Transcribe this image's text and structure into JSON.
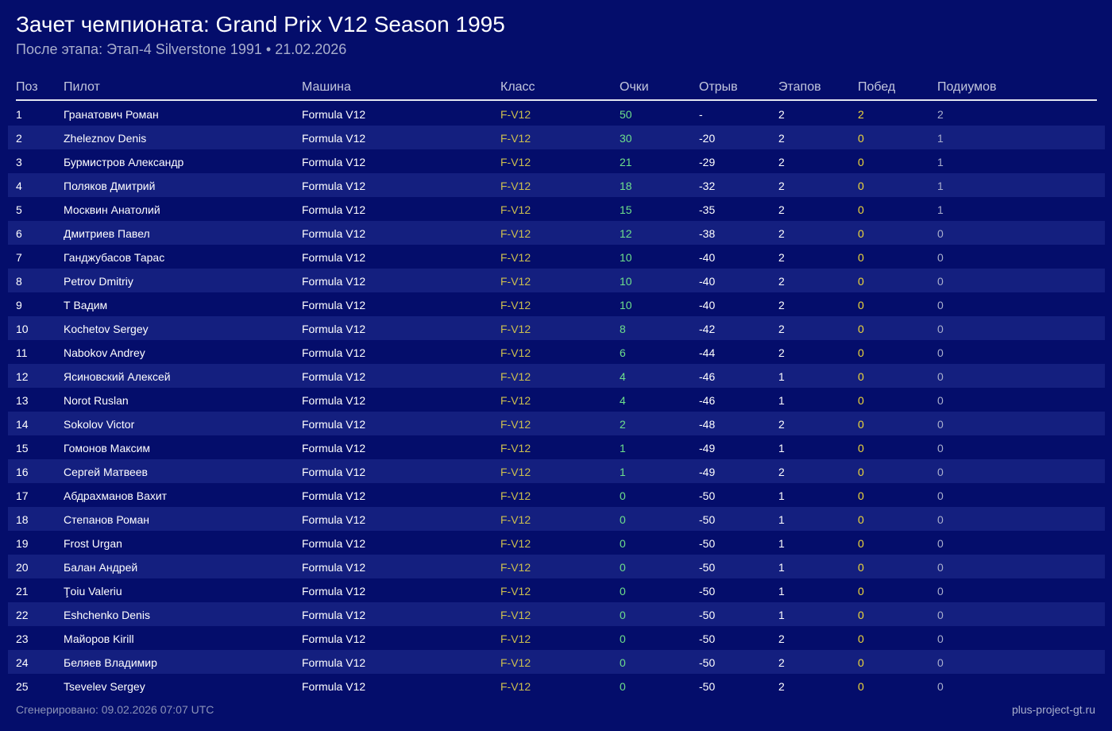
{
  "header": {
    "title": "Зачет чемпионата: Grand Prix V12 Season 1995",
    "subtitle": "После этапа: Этап-4 Silverstone 1991 • 21.02.2026"
  },
  "columns": {
    "pos": "Поз",
    "driver": "Пилот",
    "car": "Машина",
    "class": "Класс",
    "points": "Очки",
    "gap": "Отрыв",
    "stages": "Этапов",
    "wins": "Побед",
    "podiums": "Подиумов"
  },
  "colors": {
    "background": "#040d6b",
    "row_alt": "#141f7f",
    "class_text": "#cdbf4f",
    "points_text": "#6ee08c",
    "wins_text": "#f0d73a",
    "muted_text": "#a9afcd"
  },
  "rows": [
    {
      "pos": "1",
      "driver": "Гранатович Роман",
      "car": "Formula V12",
      "class": "F-V12",
      "points": "50",
      "gap": "-",
      "stages": "2",
      "wins": "2",
      "podiums": "2"
    },
    {
      "pos": "2",
      "driver": "Zheleznov Denis",
      "car": "Formula V12",
      "class": "F-V12",
      "points": "30",
      "gap": "-20",
      "stages": "2",
      "wins": "0",
      "podiums": "1"
    },
    {
      "pos": "3",
      "driver": "Бурмистров Александр",
      "car": "Formula V12",
      "class": "F-V12",
      "points": "21",
      "gap": "-29",
      "stages": "2",
      "wins": "0",
      "podiums": "1"
    },
    {
      "pos": "4",
      "driver": "Поляков Дмитрий",
      "car": "Formula V12",
      "class": "F-V12",
      "points": "18",
      "gap": "-32",
      "stages": "2",
      "wins": "0",
      "podiums": "1"
    },
    {
      "pos": "5",
      "driver": "Москвин Анатолий",
      "car": "Formula V12",
      "class": "F-V12",
      "points": "15",
      "gap": "-35",
      "stages": "2",
      "wins": "0",
      "podiums": "1"
    },
    {
      "pos": "6",
      "driver": "Дмитриев Павел",
      "car": "Formula V12",
      "class": "F-V12",
      "points": "12",
      "gap": "-38",
      "stages": "2",
      "wins": "0",
      "podiums": "0"
    },
    {
      "pos": "7",
      "driver": "Ганджубасов Тарас",
      "car": "Formula V12",
      "class": "F-V12",
      "points": "10",
      "gap": "-40",
      "stages": "2",
      "wins": "0",
      "podiums": "0"
    },
    {
      "pos": "8",
      "driver": "Petrov Dmitriy",
      "car": "Formula V12",
      "class": "F-V12",
      "points": "10",
      "gap": "-40",
      "stages": "2",
      "wins": "0",
      "podiums": "0"
    },
    {
      "pos": "9",
      "driver": "Т Вадим",
      "car": "Formula V12",
      "class": "F-V12",
      "points": "10",
      "gap": "-40",
      "stages": "2",
      "wins": "0",
      "podiums": "0"
    },
    {
      "pos": "10",
      "driver": "Kochetov Sergey",
      "car": "Formula V12",
      "class": "F-V12",
      "points": "8",
      "gap": "-42",
      "stages": "2",
      "wins": "0",
      "podiums": "0"
    },
    {
      "pos": "11",
      "driver": "Nabokov Andrey",
      "car": "Formula V12",
      "class": "F-V12",
      "points": "6",
      "gap": "-44",
      "stages": "2",
      "wins": "0",
      "podiums": "0"
    },
    {
      "pos": "12",
      "driver": "Ясиновский Алексей",
      "car": "Formula V12",
      "class": "F-V12",
      "points": "4",
      "gap": "-46",
      "stages": "1",
      "wins": "0",
      "podiums": "0"
    },
    {
      "pos": "13",
      "driver": "Norot Ruslan",
      "car": "Formula V12",
      "class": "F-V12",
      "points": "4",
      "gap": "-46",
      "stages": "1",
      "wins": "0",
      "podiums": "0"
    },
    {
      "pos": "14",
      "driver": "Sokolov Victor",
      "car": "Formula V12",
      "class": "F-V12",
      "points": "2",
      "gap": "-48",
      "stages": "2",
      "wins": "0",
      "podiums": "0"
    },
    {
      "pos": "15",
      "driver": "Гомонов Максим",
      "car": "Formula V12",
      "class": "F-V12",
      "points": "1",
      "gap": "-49",
      "stages": "1",
      "wins": "0",
      "podiums": "0"
    },
    {
      "pos": "16",
      "driver": "Сергей Матвеев",
      "car": "Formula V12",
      "class": "F-V12",
      "points": "1",
      "gap": "-49",
      "stages": "2",
      "wins": "0",
      "podiums": "0"
    },
    {
      "pos": "17",
      "driver": "Абдрахманов Вахит",
      "car": "Formula V12",
      "class": "F-V12",
      "points": "0",
      "gap": "-50",
      "stages": "1",
      "wins": "0",
      "podiums": "0"
    },
    {
      "pos": "18",
      "driver": "Степанов Роман",
      "car": "Formula V12",
      "class": "F-V12",
      "points": "0",
      "gap": "-50",
      "stages": "1",
      "wins": "0",
      "podiums": "0"
    },
    {
      "pos": "19",
      "driver": "Frost Urgan",
      "car": "Formula V12",
      "class": "F-V12",
      "points": "0",
      "gap": "-50",
      "stages": "1",
      "wins": "0",
      "podiums": "0"
    },
    {
      "pos": "20",
      "driver": "Балан Андрей",
      "car": "Formula V12",
      "class": "F-V12",
      "points": "0",
      "gap": "-50",
      "stages": "1",
      "wins": "0",
      "podiums": "0"
    },
    {
      "pos": "21",
      "driver": "Ţoiu Valeriu",
      "car": "Formula V12",
      "class": "F-V12",
      "points": "0",
      "gap": "-50",
      "stages": "1",
      "wins": "0",
      "podiums": "0"
    },
    {
      "pos": "22",
      "driver": "Eshchenko Denis",
      "car": "Formula V12",
      "class": "F-V12",
      "points": "0",
      "gap": "-50",
      "stages": "1",
      "wins": "0",
      "podiums": "0"
    },
    {
      "pos": "23",
      "driver": "Майоров Kirill",
      "car": "Formula V12",
      "class": "F-V12",
      "points": "0",
      "gap": "-50",
      "stages": "2",
      "wins": "0",
      "podiums": "0"
    },
    {
      "pos": "24",
      "driver": "Беляев Владимир",
      "car": "Formula V12",
      "class": "F-V12",
      "points": "0",
      "gap": "-50",
      "stages": "2",
      "wins": "0",
      "podiums": "0"
    },
    {
      "pos": "25",
      "driver": "Tsevelev  Sergey",
      "car": "Formula V12",
      "class": "F-V12",
      "points": "0",
      "gap": "-50",
      "stages": "2",
      "wins": "0",
      "podiums": "0"
    }
  ],
  "footer": {
    "generated": "Сгенерировано: 09.02.2026 07:07 UTC",
    "site": "plus-project-gt.ru"
  }
}
